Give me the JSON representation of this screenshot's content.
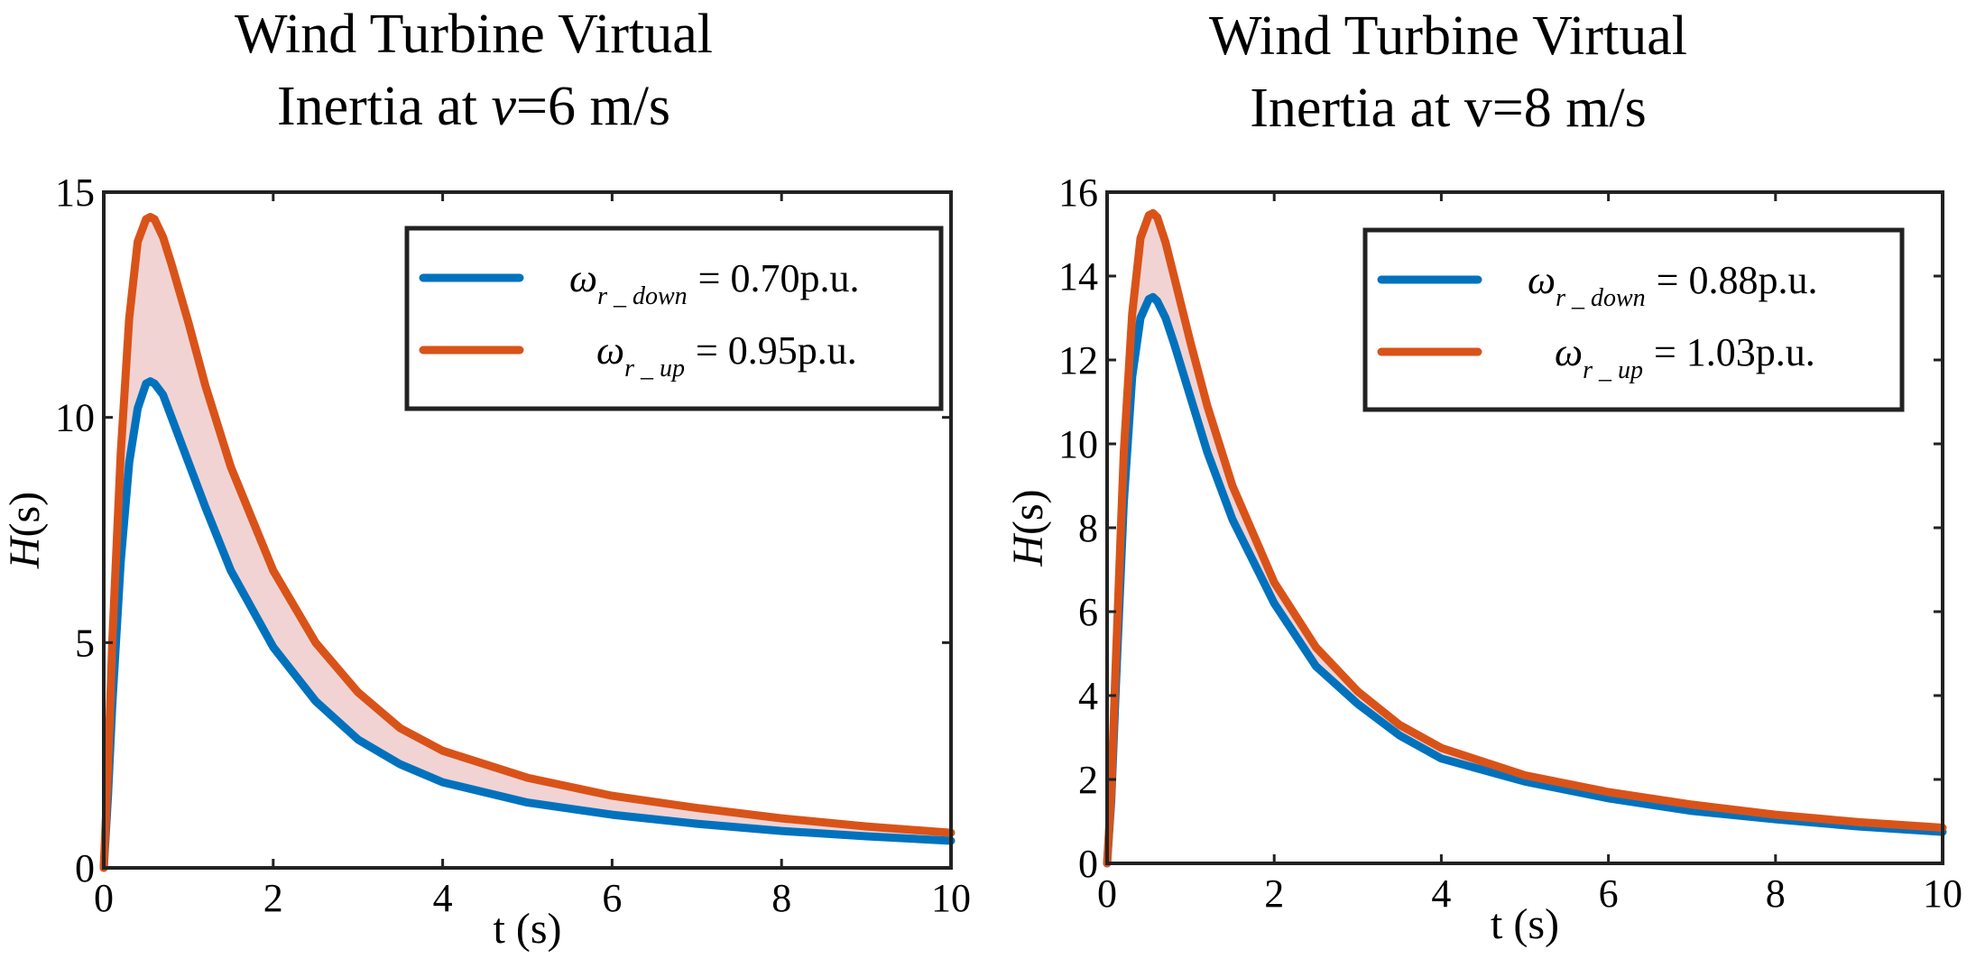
{
  "colors": {
    "down": "#0072BD",
    "up": "#D95319",
    "band": "#F2D3D3"
  },
  "chart_data": [
    {
      "type": "line",
      "title_line1": "Wind Turbine Virtual",
      "title_line2_prefix": "Inertia at ",
      "title_line2_var": "v",
      "title_line2_suffix": "=6 m/s",
      "xlabel": "t (s)",
      "ylabel_var": "H",
      "ylabel_unit": "(s)",
      "xlim": [
        0,
        10
      ],
      "ylim": [
        0,
        15
      ],
      "xticks": [
        0,
        2,
        4,
        6,
        8,
        10
      ],
      "yticks": [
        0,
        5,
        10,
        15
      ],
      "legend_position": "top-right",
      "band_between_series": true,
      "series": [
        {
          "name": "down",
          "legend_symbol": "ω",
          "legend_subscript": "r _ down",
          "legend_value": "= 0.70p.u.",
          "x": [
            0,
            0.05,
            0.1,
            0.2,
            0.3,
            0.4,
            0.5,
            0.55,
            0.6,
            0.7,
            0.8,
            1.0,
            1.2,
            1.5,
            2.0,
            2.5,
            3.0,
            3.5,
            4.0,
            5.0,
            6.0,
            7.0,
            8.0,
            9.0,
            10.0
          ],
          "y": [
            0,
            1.6,
            3.6,
            6.8,
            9.0,
            10.2,
            10.75,
            10.8,
            10.75,
            10.5,
            10.0,
            9.0,
            8.0,
            6.6,
            4.9,
            3.7,
            2.85,
            2.3,
            1.9,
            1.45,
            1.18,
            0.98,
            0.82,
            0.7,
            0.6
          ]
        },
        {
          "name": "up",
          "legend_symbol": "ω",
          "legend_subscript": "r _ up",
          "legend_value": "= 0.95p.u.",
          "x": [
            0,
            0.05,
            0.1,
            0.2,
            0.3,
            0.4,
            0.5,
            0.55,
            0.6,
            0.7,
            0.8,
            1.0,
            1.2,
            1.5,
            2.0,
            2.5,
            3.0,
            3.5,
            4.0,
            5.0,
            6.0,
            7.0,
            8.0,
            9.0,
            10.0
          ],
          "y": [
            0,
            2.2,
            5.0,
            9.2,
            12.2,
            13.9,
            14.4,
            14.45,
            14.4,
            14.0,
            13.4,
            12.1,
            10.7,
            8.9,
            6.6,
            5.0,
            3.9,
            3.1,
            2.6,
            2.0,
            1.6,
            1.33,
            1.1,
            0.92,
            0.78
          ]
        }
      ]
    },
    {
      "type": "line",
      "title_line1": "Wind Turbine Virtual",
      "title_line2_prefix": "Inertia at v=8 m/s",
      "title_line2_var": "",
      "title_line2_suffix": "",
      "xlabel": "t (s)",
      "ylabel_var": "H",
      "ylabel_unit": "(s)",
      "xlim": [
        0,
        10
      ],
      "ylim": [
        0,
        16
      ],
      "xticks": [
        0,
        2,
        4,
        6,
        8,
        10
      ],
      "yticks": [
        0,
        2,
        4,
        6,
        8,
        10,
        12,
        14,
        16
      ],
      "legend_position": "top-right",
      "band_between_series": true,
      "series": [
        {
          "name": "down",
          "legend_symbol": "ω",
          "legend_subscript": "r _ down",
          "legend_value": "= 0.88p.u.",
          "x": [
            0,
            0.05,
            0.1,
            0.2,
            0.3,
            0.4,
            0.5,
            0.55,
            0.6,
            0.7,
            0.8,
            1.0,
            1.2,
            1.5,
            2.0,
            2.5,
            3.0,
            3.5,
            4.0,
            5.0,
            6.0,
            7.0,
            8.0,
            9.0,
            10.0
          ],
          "y": [
            0,
            1.5,
            4.0,
            8.6,
            11.6,
            13.0,
            13.45,
            13.5,
            13.4,
            13.0,
            12.4,
            11.1,
            9.8,
            8.2,
            6.2,
            4.7,
            3.8,
            3.05,
            2.5,
            1.95,
            1.55,
            1.25,
            1.05,
            0.88,
            0.75
          ]
        },
        {
          "name": "up",
          "legend_symbol": "ω",
          "legend_subscript": "r _ up",
          "legend_value": "= 1.03p.u.",
          "x": [
            0,
            0.05,
            0.1,
            0.2,
            0.3,
            0.4,
            0.5,
            0.55,
            0.6,
            0.7,
            0.8,
            1.0,
            1.2,
            1.5,
            2.0,
            2.5,
            3.0,
            3.5,
            4.0,
            5.0,
            6.0,
            7.0,
            8.0,
            9.0,
            10.0
          ],
          "y": [
            0,
            1.7,
            4.6,
            9.8,
            13.1,
            14.9,
            15.45,
            15.5,
            15.4,
            14.8,
            14.0,
            12.4,
            10.9,
            9.0,
            6.7,
            5.15,
            4.1,
            3.3,
            2.75,
            2.1,
            1.7,
            1.4,
            1.16,
            0.98,
            0.85
          ]
        }
      ]
    }
  ]
}
